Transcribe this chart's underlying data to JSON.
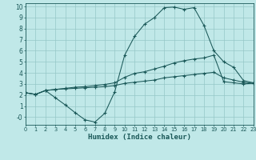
{
  "xlabel": "Humidex (Indice chaleur)",
  "bg_color": "#c0e8e8",
  "grid_color": "#96c8c8",
  "line_color": "#1a5858",
  "xlim": [
    0,
    23
  ],
  "ylim": [
    -0.7,
    10.3
  ],
  "xticks": [
    0,
    1,
    2,
    3,
    4,
    5,
    6,
    7,
    8,
    9,
    10,
    11,
    12,
    13,
    14,
    15,
    16,
    17,
    18,
    19,
    20,
    21,
    22,
    23
  ],
  "yticks": [
    0,
    1,
    2,
    3,
    4,
    5,
    6,
    7,
    8,
    9,
    10
  ],
  "ytick_labels": [
    "-0",
    "1",
    "2",
    "3",
    "4",
    "5",
    "6",
    "7",
    "8",
    "9",
    "10"
  ],
  "series1_x": [
    0,
    1,
    2,
    3,
    4,
    5,
    6,
    7,
    8,
    9,
    10,
    11,
    12,
    13,
    14,
    15,
    16,
    17,
    18,
    19,
    20,
    21,
    22,
    23
  ],
  "series1_y": [
    2.2,
    2.05,
    2.4,
    1.75,
    1.1,
    0.4,
    -0.25,
    -0.45,
    0.35,
    2.3,
    5.6,
    7.3,
    8.4,
    9.0,
    9.9,
    9.95,
    9.75,
    9.9,
    8.3,
    6.0,
    5.0,
    4.5,
    3.3,
    3.1
  ],
  "series2_x": [
    0,
    1,
    2,
    3,
    4,
    5,
    6,
    7,
    8,
    9,
    10,
    11,
    12,
    13,
    14,
    15,
    16,
    17,
    18,
    19,
    20,
    21,
    22,
    23
  ],
  "series2_y": [
    2.2,
    2.05,
    2.4,
    2.5,
    2.6,
    2.7,
    2.75,
    2.85,
    2.95,
    3.1,
    3.6,
    3.95,
    4.1,
    4.35,
    4.6,
    4.9,
    5.1,
    5.25,
    5.35,
    5.6,
    3.2,
    3.1,
    3.0,
    3.05
  ],
  "series3_x": [
    0,
    1,
    2,
    3,
    4,
    5,
    6,
    7,
    8,
    9,
    10,
    11,
    12,
    13,
    14,
    15,
    16,
    17,
    18,
    19,
    20,
    21,
    22,
    23
  ],
  "series3_y": [
    2.2,
    2.05,
    2.4,
    2.5,
    2.55,
    2.6,
    2.65,
    2.7,
    2.75,
    2.85,
    3.05,
    3.15,
    3.25,
    3.35,
    3.55,
    3.65,
    3.75,
    3.85,
    3.95,
    4.05,
    3.55,
    3.35,
    3.15,
    3.05
  ]
}
